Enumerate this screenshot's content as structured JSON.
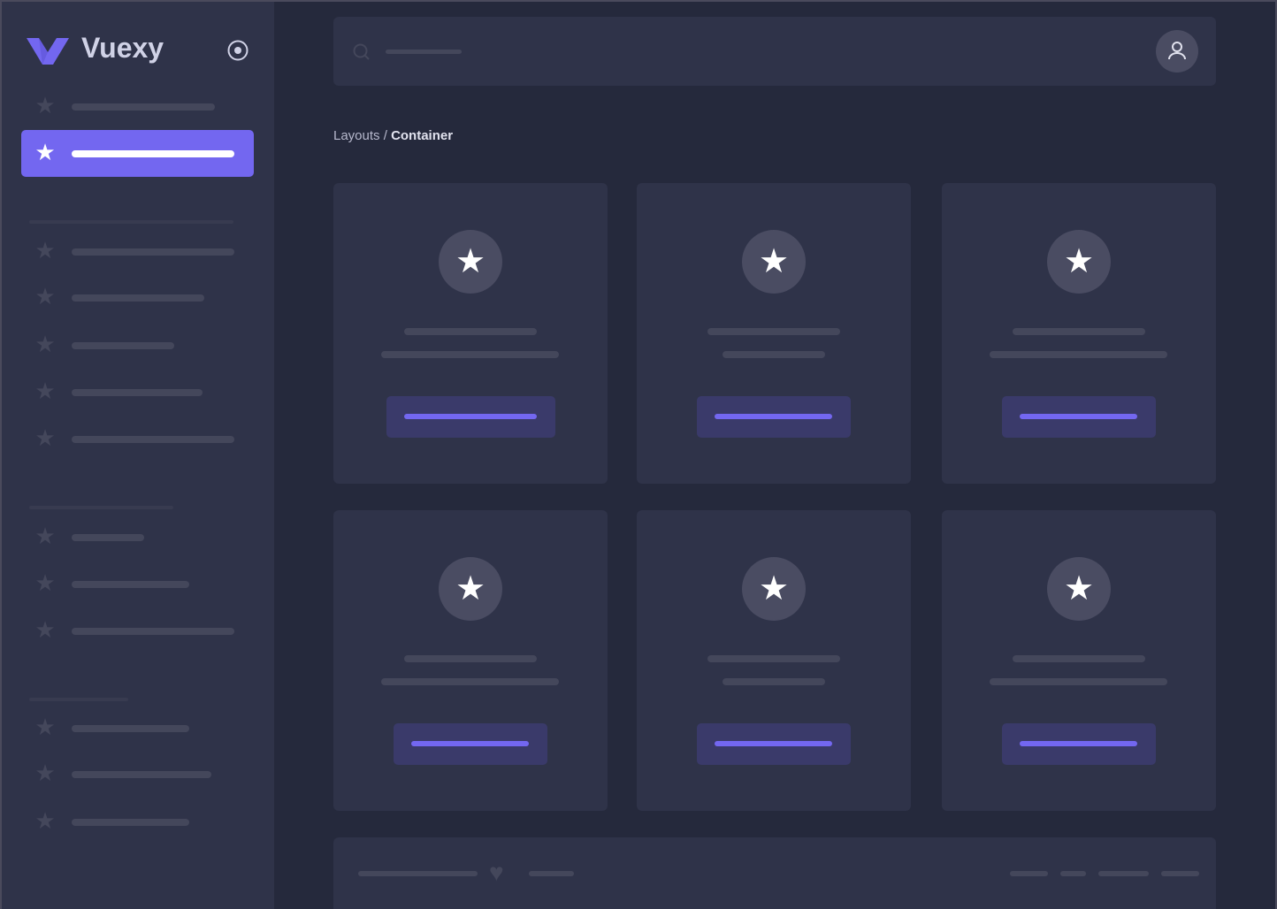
{
  "brand": {
    "name": "Vuexy",
    "logo_color": "#7367f0",
    "accent": "#7367f0"
  },
  "sidebar": {
    "toggle_icon": "radio-circle-icon",
    "items": [
      {
        "icon": "star-icon",
        "active": false
      },
      {
        "icon": "star-icon",
        "active": true
      },
      {
        "icon": "star-icon",
        "active": false
      },
      {
        "icon": "star-icon",
        "active": false
      },
      {
        "icon": "star-icon",
        "active": false
      },
      {
        "icon": "star-icon",
        "active": false
      },
      {
        "icon": "star-icon",
        "active": false
      },
      {
        "icon": "star-icon",
        "active": false
      },
      {
        "icon": "star-icon",
        "active": false
      },
      {
        "icon": "star-icon",
        "active": false
      },
      {
        "icon": "star-icon",
        "active": false
      },
      {
        "icon": "star-icon",
        "active": false
      },
      {
        "icon": "star-icon",
        "active": false
      }
    ]
  },
  "header": {
    "search_icon": "search-icon",
    "avatar_icon": "user-icon"
  },
  "breadcrumb": {
    "parent": "Layouts",
    "separator": " / ",
    "current": "Container"
  },
  "cards": [
    {
      "icon": "star-icon"
    },
    {
      "icon": "star-icon"
    },
    {
      "icon": "star-icon"
    },
    {
      "icon": "star-icon"
    },
    {
      "icon": "star-icon"
    },
    {
      "icon": "star-icon"
    }
  ],
  "footer": {
    "icon": "heart-icon"
  }
}
